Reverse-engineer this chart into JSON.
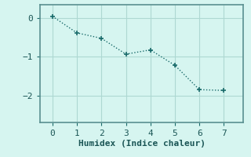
{
  "x": [
    0,
    1,
    2,
    3,
    4,
    5,
    6,
    7
  ],
  "y": [
    0.05,
    -0.38,
    -0.52,
    -0.93,
    -0.82,
    -1.22,
    -1.85,
    -1.87
  ],
  "line_color": "#1a6b6b",
  "marker": "+",
  "marker_size": 4,
  "linewidth": 1.0,
  "linestyle": "dotted",
  "xlabel": "Humidex (Indice chaleur)",
  "xlim": [
    -0.5,
    7.8
  ],
  "ylim": [
    -2.7,
    0.35
  ],
  "yticks": [
    0,
    -1,
    -2
  ],
  "xticks": [
    0,
    1,
    2,
    3,
    4,
    5,
    6,
    7
  ],
  "background_color": "#d6f5f0",
  "grid_color": "#aed8d2",
  "spine_color": "#5a9090",
  "tick_color": "#1a6b6b",
  "label_color": "#1a5555",
  "label_fontsize": 8,
  "tick_fontsize": 8,
  "font_family": "monospace"
}
